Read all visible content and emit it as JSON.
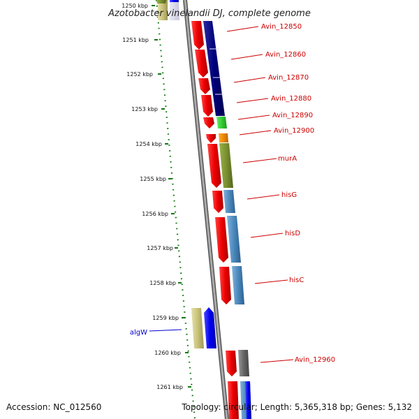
{
  "title": "Azotobacter vinelandii DJ, complete genome",
  "footer": {
    "accession": "Accession: NC_012560",
    "topology": "Topology: circular; Length: 5,365,318 bp; Genes: 5,132"
  },
  "colors": {
    "label_red": "#cc0000",
    "label_blue": "#0000cc",
    "tick_green": "#117711",
    "backbone": "#888888",
    "cds_red": "#ee0000"
  },
  "ticks": [
    {
      "label": "1250 kbp"
    },
    {
      "label": "1251 kbp"
    },
    {
      "label": "1252 kbp"
    },
    {
      "label": "1253 kbp"
    },
    {
      "label": "1254 kbp"
    },
    {
      "label": "1255 kbp"
    },
    {
      "label": "1256 kbp"
    },
    {
      "label": "1257 kbp"
    },
    {
      "label": "1258 kbp"
    },
    {
      "label": "1259 kbp"
    },
    {
      "label": "1260 kbp"
    },
    {
      "label": "1261 kbp"
    }
  ],
  "genes": [
    {
      "label": "Avin_12850"
    },
    {
      "label": "Avin_12860"
    },
    {
      "label": "Avin_12870"
    },
    {
      "label": "Avin_12880"
    },
    {
      "label": "Avin_12890"
    },
    {
      "label": "Avin_12900"
    },
    {
      "label": "murA"
    },
    {
      "label": "hisG"
    },
    {
      "label": "hisD"
    },
    {
      "label": "hisC"
    },
    {
      "label": "algW"
    },
    {
      "label": "Avin_12960"
    }
  ]
}
